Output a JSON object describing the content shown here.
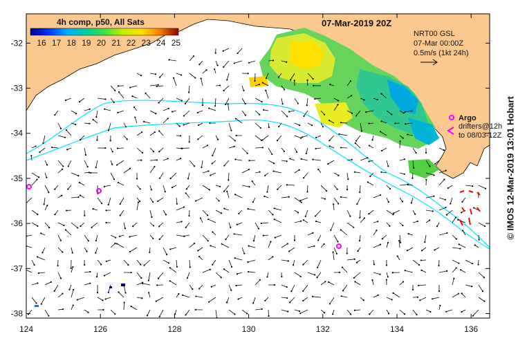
{
  "title": "07-Mar-2019 20Z",
  "colorbar": {
    "label": "4h comp, p50, All Sats",
    "ticks": [
      "16",
      "17",
      "18",
      "19",
      "20",
      "21",
      "22",
      "23",
      "24",
      "25"
    ]
  },
  "info": {
    "line1": "NRT00 GSL",
    "line2": "07-Mar 00:00Z",
    "line3": "0.5m/s (1kt 24h)"
  },
  "legend": {
    "argo": "Argo",
    "drifters1": "drifters@12h",
    "drifters2": "to 08/03-12Z"
  },
  "credit": "© IMOS 12-Mar-2019 13:01 Hobart",
  "y_axis": {
    "labels": [
      "-32",
      "-33",
      "-34",
      "-35",
      "-36",
      "-37",
      "-38"
    ],
    "values": [
      -32,
      -33,
      -34,
      -35,
      -36,
      -37,
      -38
    ]
  },
  "x_axis": {
    "labels": [
      "124",
      "126",
      "128",
      "130",
      "132",
      "134",
      "136"
    ],
    "values": [
      124,
      126,
      128,
      130,
      132,
      134,
      136
    ]
  },
  "colors": {
    "land": "#fbc98f",
    "contour": "#00e5ff",
    "argo": "#ff00ff",
    "drifter": "#ff0000"
  }
}
